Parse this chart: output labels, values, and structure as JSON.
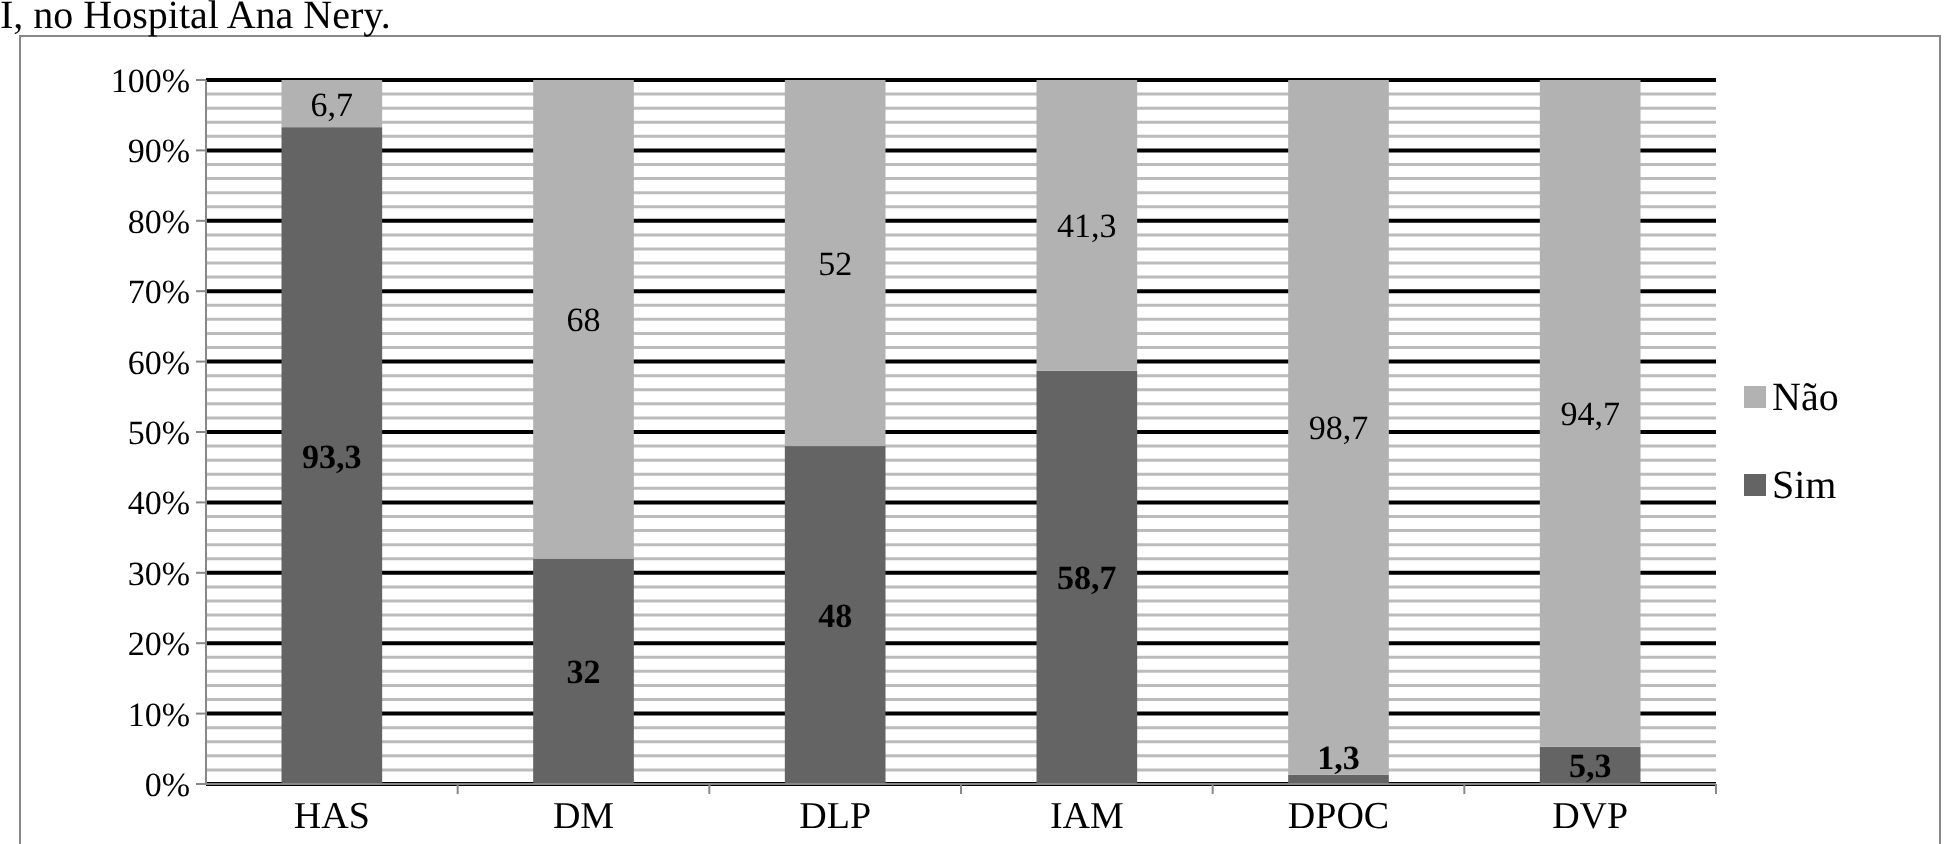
{
  "chart_data": {
    "type": "bar",
    "title": "I, no Hospital Ana Nery.",
    "categories": [
      "HAS",
      "DM",
      "DLP",
      "IAM",
      "DPOC",
      "DVP"
    ],
    "stacked": true,
    "series": [
      {
        "name": "Sim",
        "color": "#646464",
        "values": [
          93.3,
          32,
          48,
          58.7,
          1.3,
          5.3
        ],
        "value_labels": [
          "93,3",
          "32",
          "48",
          "58,7",
          "1,3",
          "5,3"
        ]
      },
      {
        "name": "Não",
        "color": "#b2b2b2",
        "values": [
          6.7,
          68,
          52,
          41.3,
          98.7,
          94.7
        ],
        "value_labels": [
          "6,7",
          "68",
          "52",
          "41,3",
          "98,7",
          "94,7"
        ]
      }
    ],
    "ylim": [
      0,
      100
    ],
    "yticks": [
      {
        "value": 0,
        "label": "0%"
      },
      {
        "value": 10,
        "label": "10%"
      },
      {
        "value": 20,
        "label": "20%"
      },
      {
        "value": 30,
        "label": "30%"
      },
      {
        "value": 40,
        "label": "40%"
      },
      {
        "value": 50,
        "label": "50%"
      },
      {
        "value": 60,
        "label": "60%"
      },
      {
        "value": 70,
        "label": "70%"
      },
      {
        "value": 80,
        "label": "80%"
      },
      {
        "value": 90,
        "label": "90%"
      },
      {
        "value": 100,
        "label": "100%"
      }
    ],
    "grid": true,
    "legend": "right"
  }
}
